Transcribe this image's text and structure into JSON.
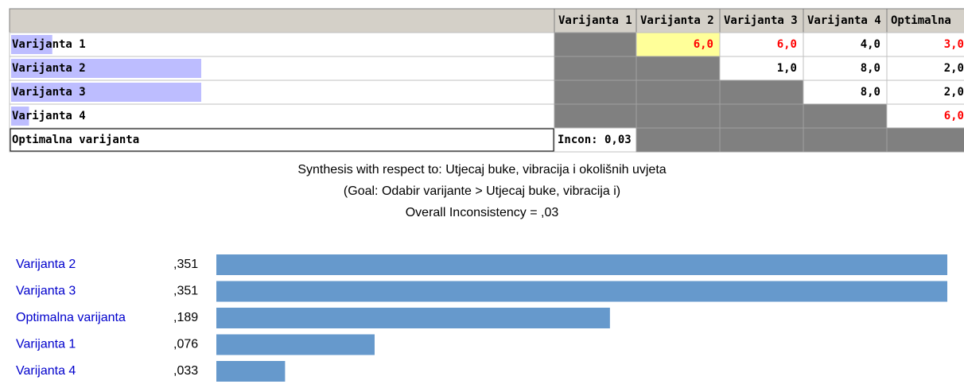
{
  "table": {
    "header": [
      "Varijanta 1",
      "Varijanta 2",
      "Varijanta 3",
      "Varijanta 4",
      "Optimalna"
    ],
    "rows": [
      {
        "label": "Varijanta 1",
        "cells": [
          null,
          {
            "text": "6,0",
            "color": "#ff0000",
            "highlight": "#ffff99"
          },
          {
            "text": "6,0",
            "color": "#ff0000"
          },
          {
            "text": "4,0",
            "color": "#000000"
          },
          {
            "text": "3,0",
            "color": "#ff0000"
          }
        ]
      },
      {
        "label": "Varijanta 2",
        "cells": [
          null,
          null,
          {
            "text": "1,0",
            "color": "#000000"
          },
          {
            "text": "8,0",
            "color": "#000000"
          },
          {
            "text": "2,0",
            "color": "#000000"
          }
        ]
      },
      {
        "label": "Varijanta 3",
        "cells": [
          null,
          null,
          null,
          {
            "text": "8,0",
            "color": "#000000"
          },
          {
            "text": "2,0",
            "color": "#000000"
          }
        ]
      },
      {
        "label": "Varijanta 4",
        "cells": [
          null,
          null,
          null,
          null,
          {
            "text": "6,0",
            "color": "#ff0000"
          }
        ]
      },
      {
        "label": "Optimalna varijanta",
        "cells": [
          {
            "text": "Incon: 0,03",
            "color": "#000000"
          },
          null,
          null,
          null,
          null
        ]
      }
    ]
  },
  "synthesis": {
    "lines": [
      "Synthesis with respect to: Utjecaj buke, vibracija i okolišnih uvjeta",
      "(Goal: Odabir varijante > Utjecaj buke, vibracija i)",
      "Overall Inconsistency = ,03"
    ]
  },
  "chart_data": {
    "type": "hbar",
    "categories": [
      "Varijanta 2",
      "Varijanta 3",
      "Optimalna varijanta",
      "Varijanta 1",
      "Varijanta 4"
    ],
    "values": [
      0.351,
      0.351,
      0.189,
      0.076,
      0.033
    ],
    "value_labels": [
      ",351",
      ",351",
      ",189",
      ",076",
      ",033"
    ],
    "color": "#6699cc",
    "label_color": "#0000cc"
  }
}
